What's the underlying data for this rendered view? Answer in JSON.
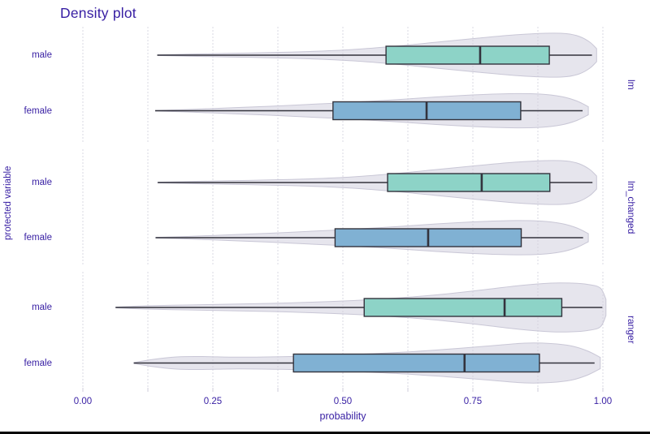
{
  "title": "Density plot",
  "chart_data": {
    "type": "violin+boxplot",
    "title": "Density plot",
    "xlabel": "probability",
    "ylabel": "protected variable",
    "xlim": [
      0,
      1
    ],
    "x_ticks": [
      0,
      0.25,
      0.5,
      0.75,
      1.0
    ],
    "x_tick_labels": [
      "0.00",
      "0.25",
      "0.50",
      "0.75",
      "1.00"
    ],
    "x_gridline_step": 0.125,
    "grid": "vertical-dashed",
    "legend_position": "none",
    "facet_side": "right",
    "colors": {
      "male_box_fill": "#8DD3C7",
      "female_box_fill": "#80B1D3",
      "violin_fill": "rgba(210,208,222,0.55)",
      "violin_stroke": "#c9c7d6",
      "box_stroke": "#33333d",
      "gridline": "#d9d8e3",
      "tick_mark": "#cfcedb",
      "text": "#371ea3",
      "window_border": "#050505"
    },
    "facets": [
      {
        "name": "lm",
        "rows": [
          {
            "group": "male",
            "box": {
              "min": 0.143,
              "q1": 0.583,
              "median": 0.764,
              "q3": 0.897,
              "max": 0.979
            },
            "violin_profile_p_halfwidth": [
              [
                0.144,
                0.4
              ],
              [
                0.2,
                1.2
              ],
              [
                0.28,
                2.2
              ],
              [
                0.36,
                3.2
              ],
              [
                0.44,
                4.6
              ],
              [
                0.52,
                7
              ],
              [
                0.6,
                11
              ],
              [
                0.68,
                16
              ],
              [
                0.76,
                21
              ],
              [
                0.83,
                25
              ],
              [
                0.89,
                27
              ],
              [
                0.93,
                26.5
              ],
              [
                0.955,
                23
              ],
              [
                0.975,
                16
              ],
              [
                0.988,
                8
              ]
            ]
          },
          {
            "group": "female",
            "box": {
              "min": 0.139,
              "q1": 0.481,
              "median": 0.661,
              "q3": 0.842,
              "max": 0.961
            },
            "violin_profile_p_halfwidth": [
              [
                0.14,
                0.4
              ],
              [
                0.2,
                1.5
              ],
              [
                0.28,
                3.5
              ],
              [
                0.36,
                5.5
              ],
              [
                0.44,
                8
              ],
              [
                0.52,
                10.5
              ],
              [
                0.6,
                13.5
              ],
              [
                0.68,
                17
              ],
              [
                0.75,
                19.5
              ],
              [
                0.82,
                21
              ],
              [
                0.88,
                20.5
              ],
              [
                0.92,
                17.5
              ],
              [
                0.95,
                12
              ],
              [
                0.972,
                5
              ]
            ]
          }
        ]
      },
      {
        "name": "lm_changed",
        "rows": [
          {
            "group": "male",
            "box": {
              "min": 0.144,
              "q1": 0.586,
              "median": 0.767,
              "q3": 0.898,
              "max": 0.98
            },
            "violin_profile_p_halfwidth": [
              [
                0.144,
                0.4
              ],
              [
                0.2,
                1.2
              ],
              [
                0.28,
                2.2
              ],
              [
                0.36,
                3.2
              ],
              [
                0.44,
                4.6
              ],
              [
                0.52,
                7
              ],
              [
                0.6,
                11
              ],
              [
                0.68,
                16
              ],
              [
                0.76,
                21
              ],
              [
                0.83,
                25
              ],
              [
                0.89,
                27
              ],
              [
                0.93,
                26.5
              ],
              [
                0.955,
                23
              ],
              [
                0.975,
                16
              ],
              [
                0.988,
                8
              ]
            ]
          },
          {
            "group": "female",
            "box": {
              "min": 0.14,
              "q1": 0.485,
              "median": 0.664,
              "q3": 0.843,
              "max": 0.962
            },
            "violin_profile_p_halfwidth": [
              [
                0.14,
                0.4
              ],
              [
                0.2,
                1.5
              ],
              [
                0.28,
                3.5
              ],
              [
                0.36,
                5.5
              ],
              [
                0.44,
                8
              ],
              [
                0.52,
                10.5
              ],
              [
                0.6,
                13.5
              ],
              [
                0.68,
                17
              ],
              [
                0.75,
                19.5
              ],
              [
                0.82,
                21
              ],
              [
                0.88,
                20.5
              ],
              [
                0.92,
                17.5
              ],
              [
                0.95,
                12
              ],
              [
                0.972,
                5
              ]
            ]
          }
        ]
      },
      {
        "name": "ranger",
        "rows": [
          {
            "group": "male",
            "box": {
              "min": 0.063,
              "q1": 0.541,
              "median": 0.811,
              "q3": 0.921,
              "max": 0.999
            },
            "violin_profile_p_halfwidth": [
              [
                0.063,
                0.4
              ],
              [
                0.12,
                2
              ],
              [
                0.2,
                3
              ],
              [
                0.28,
                4
              ],
              [
                0.36,
                5
              ],
              [
                0.44,
                6.5
              ],
              [
                0.52,
                8.5
              ],
              [
                0.6,
                11.5
              ],
              [
                0.68,
                15.5
              ],
              [
                0.76,
                21
              ],
              [
                0.84,
                27
              ],
              [
                0.9,
                30
              ],
              [
                0.94,
                30
              ],
              [
                0.97,
                28.5
              ],
              [
                0.995,
                24
              ],
              [
                1.006,
                10
              ]
            ]
          },
          {
            "group": "female",
            "box": {
              "min": 0.098,
              "q1": 0.405,
              "median": 0.734,
              "q3": 0.878,
              "max": 0.984
            },
            "violin_profile_p_halfwidth": [
              [
                0.098,
                0.5
              ],
              [
                0.13,
                4
              ],
              [
                0.18,
                7.5
              ],
              [
                0.23,
                8
              ],
              [
                0.3,
                7.2
              ],
              [
                0.38,
                7.8
              ],
              [
                0.46,
                9
              ],
              [
                0.54,
                11
              ],
              [
                0.62,
                13.5
              ],
              [
                0.7,
                17
              ],
              [
                0.78,
                21
              ],
              [
                0.85,
                24.5
              ],
              [
                0.9,
                24
              ],
              [
                0.94,
                21
              ],
              [
                0.97,
                15
              ],
              [
                0.995,
                7
              ]
            ]
          }
        ]
      }
    ]
  }
}
